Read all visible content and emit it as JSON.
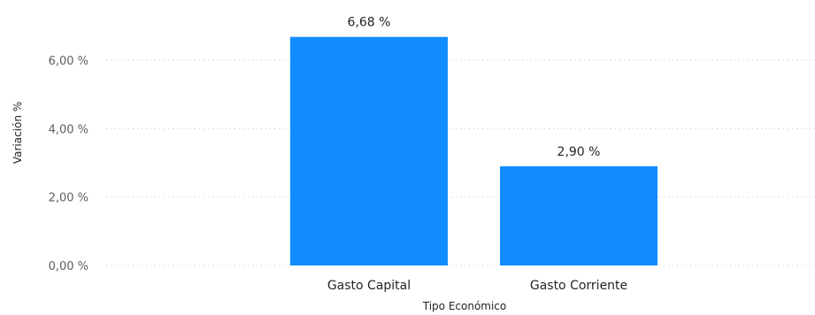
{
  "chart_data": {
    "type": "bar",
    "categories": [
      "Gasto Capital",
      "Gasto Corriente"
    ],
    "values": [
      6.68,
      2.9
    ],
    "data_labels": [
      "6,68 %",
      "2,90 %"
    ],
    "xlabel": "Tipo Económico",
    "ylabel": "Variación %",
    "ylim": [
      0,
      7
    ],
    "yticks": [
      0,
      2,
      4,
      6
    ],
    "ytick_labels": [
      "0,00 %",
      "2,00 %",
      "4,00 %",
      "6,00 %"
    ],
    "grid": true,
    "bar_color": "#118dff"
  }
}
